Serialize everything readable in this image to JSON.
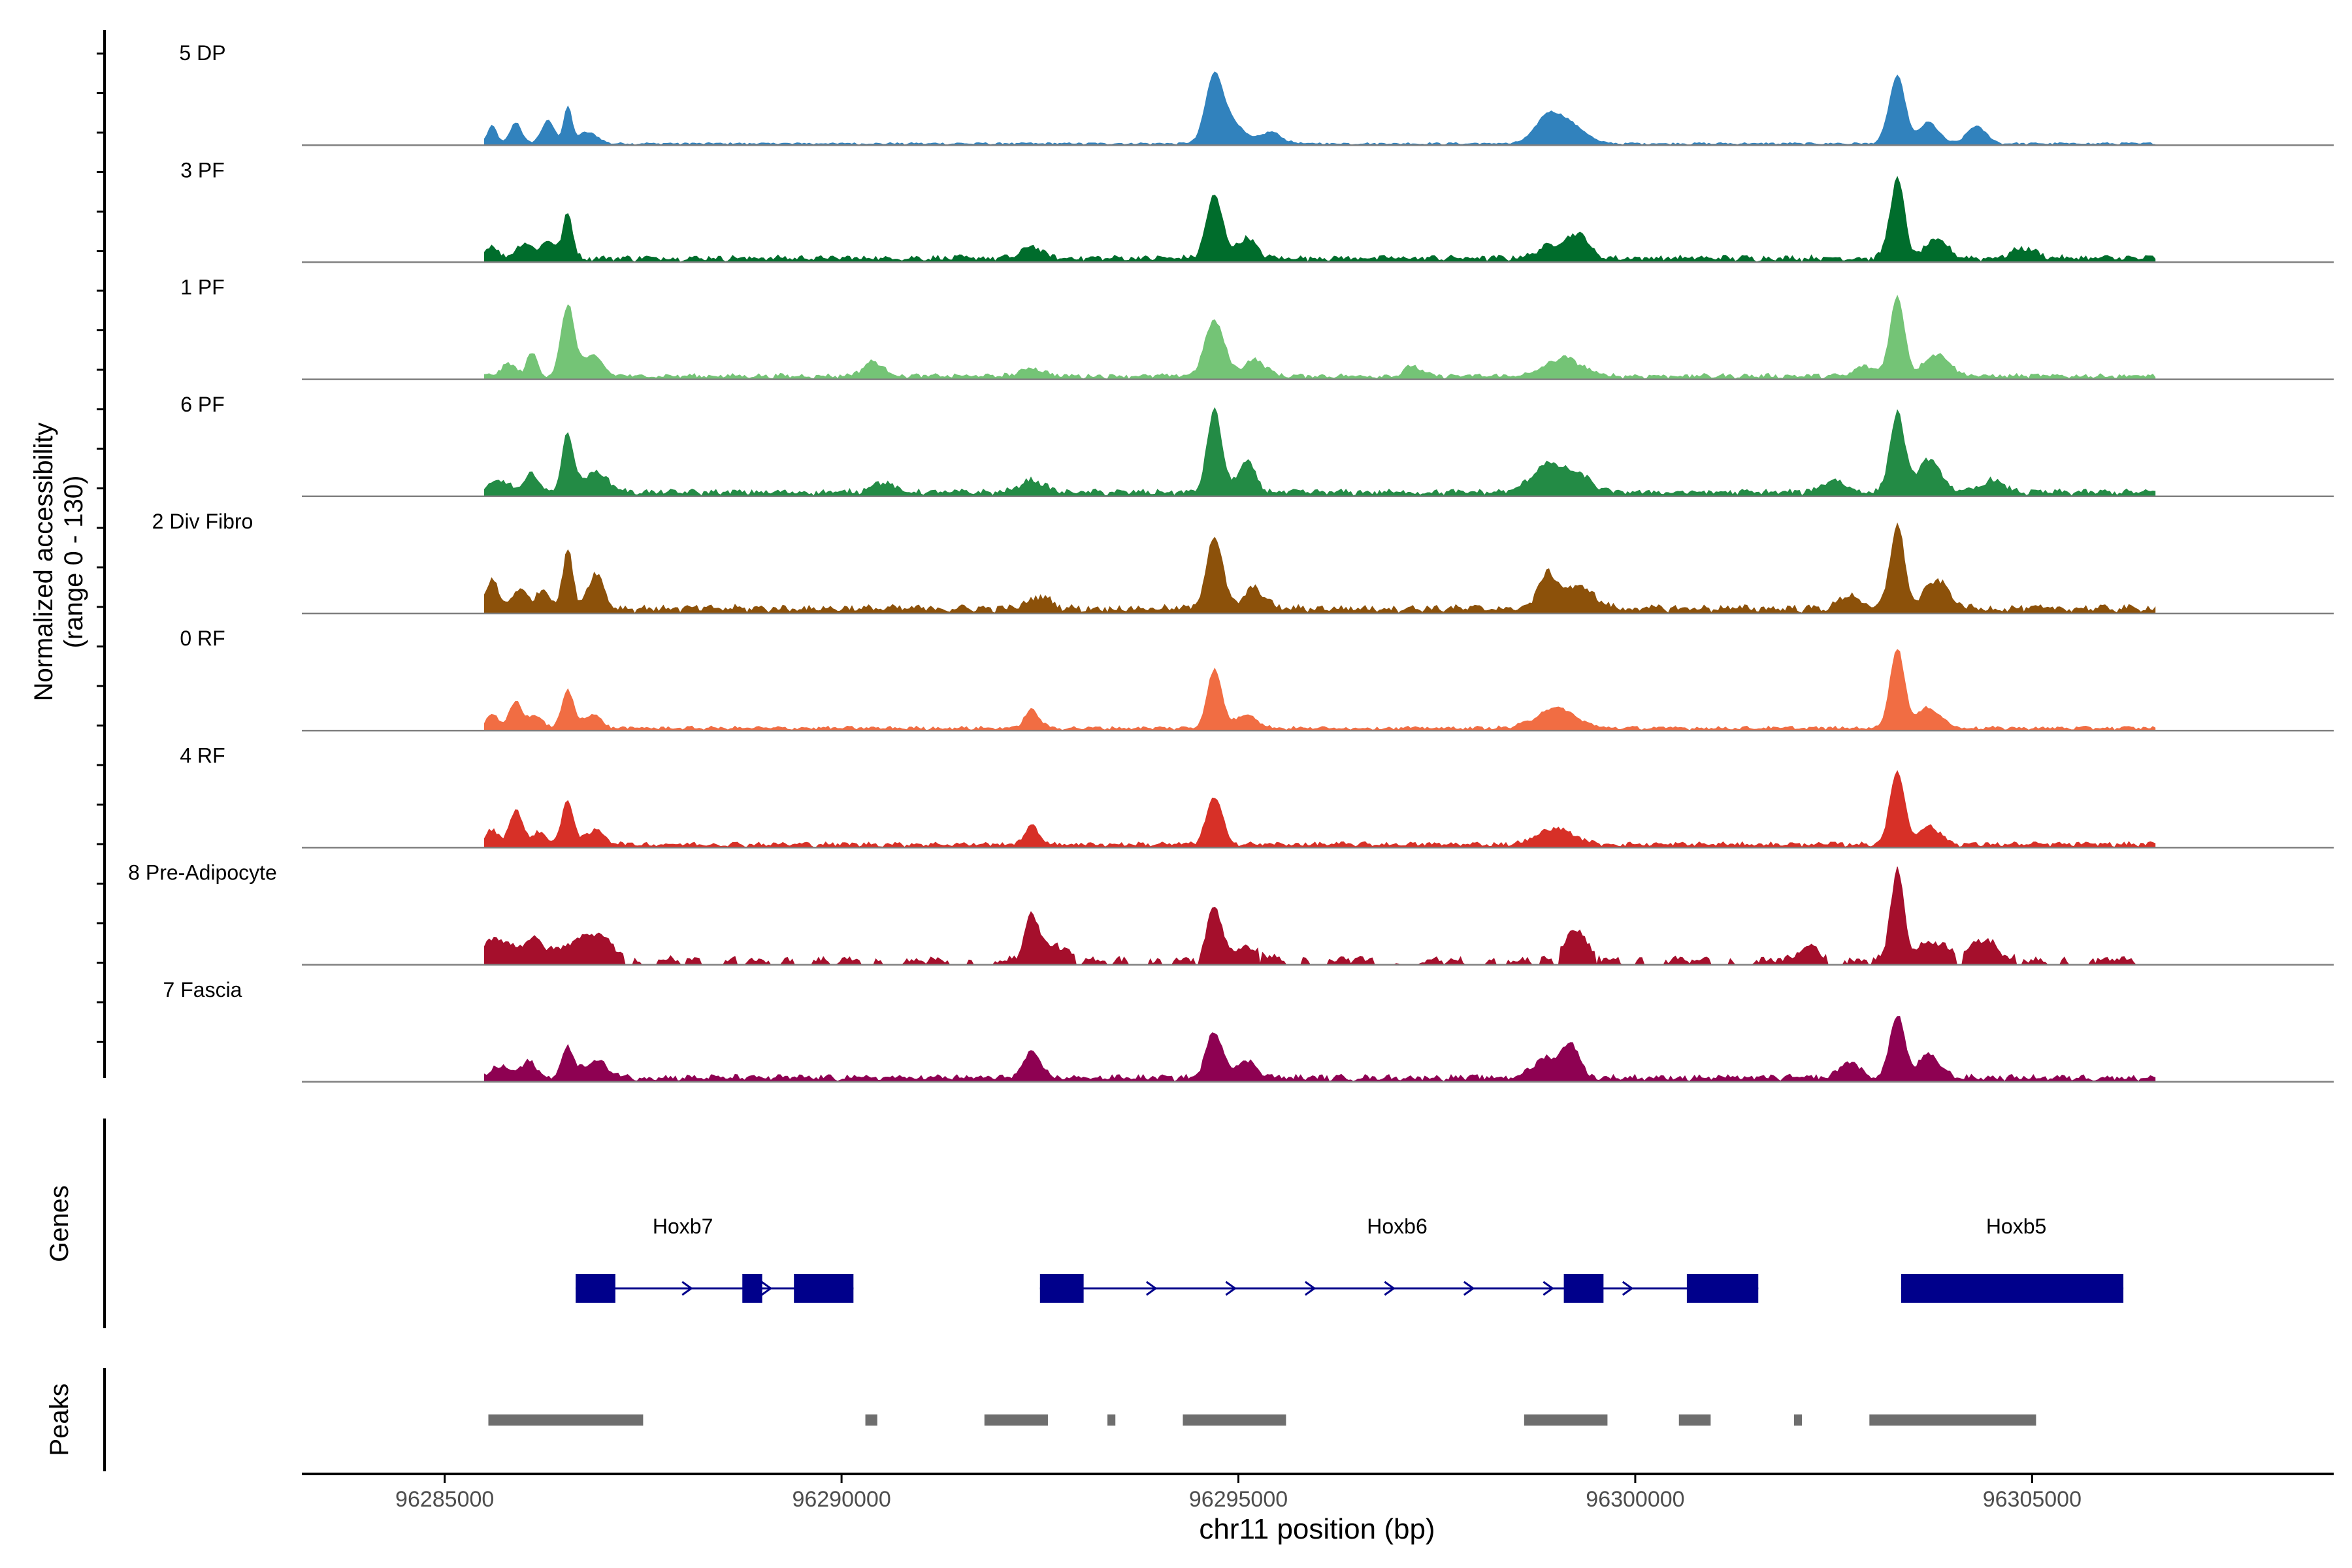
{
  "chart_data": {
    "type": "area",
    "title": "",
    "ylabel_line1": "Normalized accessibility",
    "ylabel_line2": "(range 0 - 130)",
    "yrange": [
      0,
      130
    ],
    "xlabel": "chr11 position (bp)",
    "xlim": [
      96283200,
      96308800
    ],
    "xticks": [
      96285000,
      96290000,
      96295000,
      96300000,
      96305000
    ],
    "xtick_labels": [
      "96285000",
      "96290000",
      "96295000",
      "96300000",
      "96305000"
    ],
    "track_start": 96285500,
    "track_end": 96306550,
    "genes_label": "Genes",
    "peaks_label": "Peaks",
    "tracks": [
      {
        "name": "5 DP",
        "color": "#3182bd",
        "scale": 0.95,
        "peaks": [
          [
            96285600,
            0.18,
            60
          ],
          [
            96285900,
            0.22,
            70
          ],
          [
            96286300,
            0.24,
            80
          ],
          [
            96286550,
            0.38,
            50
          ],
          [
            96286800,
            0.12,
            120
          ],
          [
            96294700,
            0.72,
            110
          ],
          [
            96294950,
            0.2,
            120
          ],
          [
            96295400,
            0.12,
            140
          ],
          [
            96298900,
            0.28,
            160
          ],
          [
            96299200,
            0.18,
            180
          ],
          [
            96303300,
            0.7,
            100
          ],
          [
            96303700,
            0.22,
            120
          ],
          [
            96304300,
            0.18,
            120
          ]
        ],
        "noise": 0.02
      },
      {
        "name": "3 PF",
        "color": "#006d2c",
        "scale": 1.0,
        "peaks": [
          [
            96285600,
            0.12,
            80
          ],
          [
            96286000,
            0.16,
            90
          ],
          [
            96286300,
            0.18,
            90
          ],
          [
            96286550,
            0.45,
            60
          ],
          [
            96292400,
            0.12,
            120
          ],
          [
            96294700,
            0.62,
            100
          ],
          [
            96295100,
            0.2,
            120
          ],
          [
            96299000,
            0.14,
            200
          ],
          [
            96299300,
            0.2,
            120
          ],
          [
            96303300,
            0.78,
            90
          ],
          [
            96303800,
            0.18,
            140
          ],
          [
            96304900,
            0.1,
            150
          ]
        ],
        "noise": 0.05
      },
      {
        "name": "1 PF",
        "color": "#74c476",
        "scale": 1.0,
        "peaks": [
          [
            96285800,
            0.12,
            90
          ],
          [
            96286100,
            0.22,
            70
          ],
          [
            96286550,
            0.7,
            80
          ],
          [
            96286850,
            0.2,
            130
          ],
          [
            96290400,
            0.14,
            130
          ],
          [
            96292400,
            0.08,
            140
          ],
          [
            96294700,
            0.55,
            120
          ],
          [
            96295200,
            0.16,
            140
          ],
          [
            96297200,
            0.1,
            100
          ],
          [
            96299100,
            0.18,
            220
          ],
          [
            96302900,
            0.1,
            120
          ],
          [
            96303300,
            0.78,
            90
          ],
          [
            96303800,
            0.22,
            160
          ]
        ],
        "noise": 0.04
      },
      {
        "name": "6 PF",
        "color": "#238b45",
        "scale": 1.0,
        "peaks": [
          [
            96285700,
            0.12,
            110
          ],
          [
            96286100,
            0.18,
            90
          ],
          [
            96286550,
            0.58,
            70
          ],
          [
            96286900,
            0.2,
            160
          ],
          [
            96290500,
            0.1,
            140
          ],
          [
            96292400,
            0.12,
            150
          ],
          [
            96294700,
            0.82,
            90
          ],
          [
            96295100,
            0.3,
            110
          ],
          [
            96298900,
            0.28,
            200
          ],
          [
            96299300,
            0.15,
            160
          ],
          [
            96302500,
            0.12,
            150
          ],
          [
            96303300,
            0.78,
            90
          ],
          [
            96303700,
            0.32,
            150
          ],
          [
            96304500,
            0.12,
            140
          ]
        ],
        "noise": 0.05
      },
      {
        "name": "2 Div Fibro",
        "color": "#8c510a",
        "scale": 1.0,
        "peaks": [
          [
            96285600,
            0.28,
            80
          ],
          [
            96285950,
            0.2,
            90
          ],
          [
            96286250,
            0.2,
            80
          ],
          [
            96286550,
            0.6,
            60
          ],
          [
            96286900,
            0.35,
            100
          ],
          [
            96292500,
            0.12,
            140
          ],
          [
            96294700,
            0.72,
            100
          ],
          [
            96295200,
            0.2,
            130
          ],
          [
            96298900,
            0.34,
            120
          ],
          [
            96299300,
            0.22,
            180
          ],
          [
            96302700,
            0.14,
            120
          ],
          [
            96303300,
            0.82,
            90
          ],
          [
            96303800,
            0.28,
            150
          ]
        ],
        "noise": 0.06
      },
      {
        "name": "0 RF",
        "color": "#f16d43",
        "scale": 1.0,
        "peaks": [
          [
            96285600,
            0.14,
            70
          ],
          [
            96285900,
            0.26,
            80
          ],
          [
            96286150,
            0.12,
            90
          ],
          [
            96286550,
            0.38,
            70
          ],
          [
            96286850,
            0.14,
            110
          ],
          [
            96292400,
            0.18,
            90
          ],
          [
            96294700,
            0.58,
            90
          ],
          [
            96295100,
            0.14,
            130
          ],
          [
            96299000,
            0.2,
            240
          ],
          [
            96303300,
            0.78,
            90
          ],
          [
            96303700,
            0.2,
            150
          ]
        ],
        "noise": 0.03
      },
      {
        "name": "4 RF",
        "color": "#d73027",
        "scale": 1.0,
        "peaks": [
          [
            96285600,
            0.14,
            80
          ],
          [
            96285900,
            0.34,
            80
          ],
          [
            96286200,
            0.12,
            90
          ],
          [
            96286550,
            0.44,
            70
          ],
          [
            96286900,
            0.14,
            120
          ],
          [
            96292400,
            0.18,
            90
          ],
          [
            96294700,
            0.46,
            100
          ],
          [
            96299000,
            0.16,
            220
          ],
          [
            96303300,
            0.72,
            90
          ],
          [
            96303700,
            0.18,
            140
          ]
        ],
        "noise": 0.04
      },
      {
        "name": "8 Pre-Adipocyte",
        "color": "#a50f2c",
        "scale": 1.0,
        "peaks": [
          [
            96285650,
            0.22,
            140
          ],
          [
            96286100,
            0.2,
            160
          ],
          [
            96286700,
            0.2,
            200
          ],
          [
            96287000,
            0.18,
            140
          ],
          [
            96292400,
            0.44,
            90
          ],
          [
            96292700,
            0.14,
            140
          ],
          [
            96294700,
            0.52,
            90
          ],
          [
            96295100,
            0.12,
            180
          ],
          [
            96299250,
            0.3,
            130
          ],
          [
            96302200,
            0.14,
            120
          ],
          [
            96303300,
            0.88,
            80
          ],
          [
            96303750,
            0.18,
            200
          ],
          [
            96304400,
            0.2,
            160
          ]
        ],
        "noise": 0.06,
        "sparse": true
      },
      {
        "name": "7 Fascia",
        "color": "#8e0152",
        "scale": 1.0,
        "peaks": [
          [
            96285700,
            0.12,
            100
          ],
          [
            96286050,
            0.16,
            100
          ],
          [
            96286550,
            0.3,
            70
          ],
          [
            96286900,
            0.16,
            160
          ],
          [
            96292400,
            0.24,
            110
          ],
          [
            96294700,
            0.46,
            100
          ],
          [
            96295100,
            0.16,
            140
          ],
          [
            96298900,
            0.2,
            180
          ],
          [
            96299200,
            0.3,
            100
          ],
          [
            96302700,
            0.16,
            120
          ],
          [
            96303300,
            0.62,
            90
          ],
          [
            96303700,
            0.22,
            140
          ]
        ],
        "noise": 0.05
      }
    ],
    "genes": [
      {
        "name": "Hoxb7",
        "start": 96286650,
        "end": 96290150,
        "label_x": 96288000,
        "exons": [
          [
            96286650,
            96287150
          ],
          [
            96288750,
            96289000
          ],
          [
            96289400,
            96290150
          ]
        ]
      },
      {
        "name": "Hoxb6",
        "start": 96292500,
        "end": 96301550,
        "label_x": 96297000,
        "exons": [
          [
            96292500,
            96293050
          ],
          [
            96299100,
            96299600
          ],
          [
            96300650,
            96301550
          ]
        ]
      },
      {
        "name": "Hoxb5",
        "start": 96303350,
        "end": 96306150,
        "label_x": 96304800,
        "exons": [
          [
            96303350,
            96306150
          ]
        ]
      }
    ],
    "peak_regions": [
      [
        96285550,
        96287500
      ],
      [
        96290300,
        96290450
      ],
      [
        96291800,
        96292600
      ],
      [
        96293350,
        96293450
      ],
      [
        96294300,
        96295600
      ],
      [
        96298600,
        96299650
      ],
      [
        96300550,
        96300950
      ],
      [
        96302000,
        96302100
      ],
      [
        96302950,
        96305050
      ]
    ]
  }
}
